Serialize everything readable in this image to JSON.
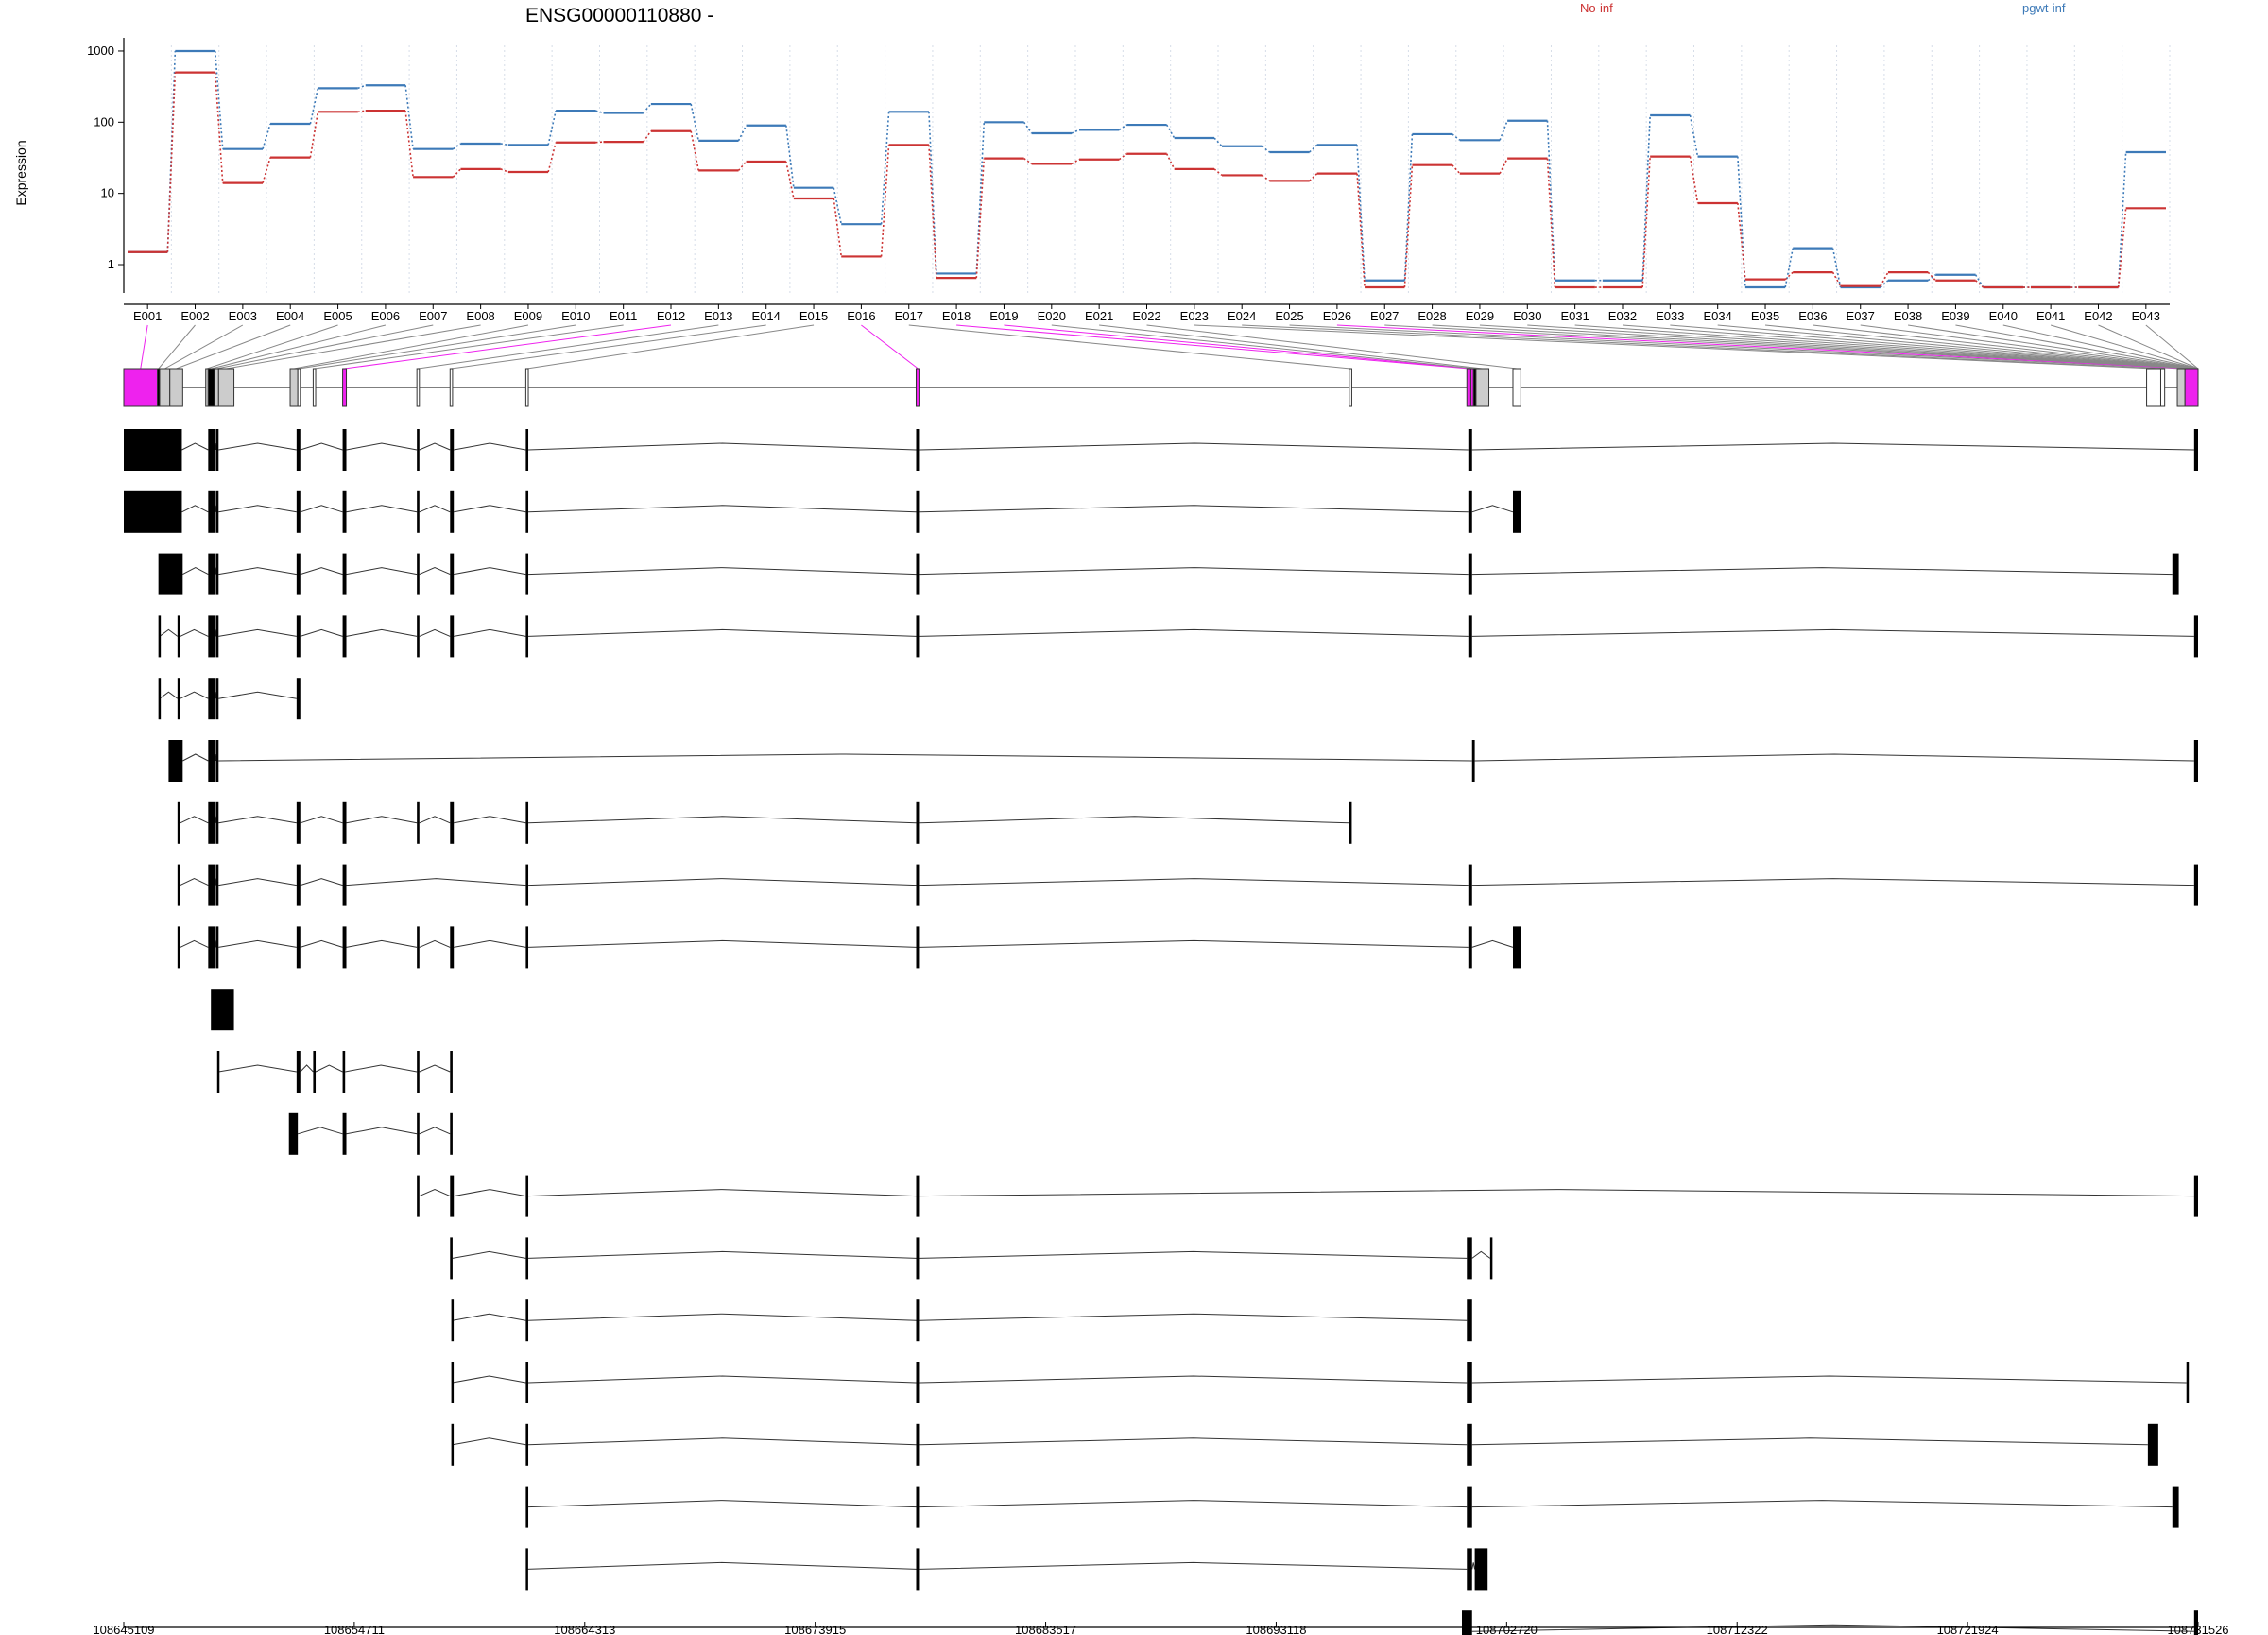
{
  "chart_data": {
    "type": "line",
    "title": "ENSG00000110880 -",
    "ylabel": "Expression",
    "yscale": "log",
    "ylim": [
      0.4,
      1200
    ],
    "yticks": [
      1,
      10,
      100,
      1000
    ],
    "ytick_labels": [
      "1",
      "10",
      "100",
      "1000"
    ],
    "categories": [
      "E001",
      "E002",
      "E003",
      "E004",
      "E005",
      "E006",
      "E007",
      "E008",
      "E009",
      "E010",
      "E011",
      "E012",
      "E013",
      "E014",
      "E015",
      "E016",
      "E017",
      "E018",
      "E019",
      "E020",
      "E021",
      "E022",
      "E023",
      "E024",
      "E025",
      "E026",
      "E027",
      "E028",
      "E029",
      "E030",
      "E031",
      "E032",
      "E033",
      "E034",
      "E035",
      "E036",
      "E037",
      "E038",
      "E039",
      "E040",
      "E041",
      "E042",
      "E043"
    ],
    "legend": [
      "No-inf",
      "pgwt-inf"
    ],
    "legend_placement": "top",
    "grid": "vertical dotted",
    "series": [
      {
        "name": "No-inf",
        "color": "#cc3333",
        "values": [
          1.5,
          500,
          14,
          32,
          140,
          145,
          17,
          22,
          20,
          52,
          53,
          75,
          21,
          28,
          8.5,
          1.3,
          48,
          0.65,
          31,
          26,
          30,
          36,
          22,
          18,
          15,
          19,
          0.48,
          25,
          19,
          31,
          0.48,
          0.48,
          33,
          7.3,
          0.62,
          0.78,
          0.5,
          0.78,
          0.6,
          0.48,
          0.48,
          0.48,
          6.2
        ]
      },
      {
        "name": "pgwt-inf",
        "color": "#3d7ab8",
        "values": [
          1.5,
          1000,
          42,
          95,
          300,
          330,
          42,
          50,
          48,
          145,
          135,
          180,
          55,
          90,
          12,
          3.7,
          140,
          0.75,
          100,
          70,
          78,
          92,
          60,
          46,
          38,
          48,
          0.6,
          68,
          56,
          105,
          0.6,
          0.6,
          125,
          33,
          0.48,
          1.7,
          0.48,
          0.6,
          0.72,
          0.48,
          0.48,
          0.48,
          38
        ]
      }
    ],
    "gene_track": {
      "x_tick_labels": [
        "108645109",
        "108654711",
        "108664313",
        "108673915",
        "108683517",
        "108693118",
        "108702720",
        "108712322",
        "108721924",
        "108731526"
      ],
      "highlight_color": "#ee22ee",
      "exons": [
        {
          "s": 0,
          "e": 0.0162,
          "color": "#ee22ee"
        },
        {
          "s": 0.0162,
          "e": 0.0173,
          "color": "#000000"
        },
        {
          "s": 0.0173,
          "e": 0.0222,
          "color": "#cccccc"
        },
        {
          "s": 0.0222,
          "e": 0.0284,
          "color": "#cccccc"
        },
        {
          "s": 0.0395,
          "e": 0.0407,
          "color": "#cccccc"
        },
        {
          "s": 0.0407,
          "e": 0.0438,
          "color": "#000000"
        },
        {
          "s": 0.0438,
          "e": 0.0457,
          "color": "#cccccc"
        },
        {
          "s": 0.0457,
          "e": 0.0531,
          "color": "#cccccc"
        },
        {
          "s": 0.0802,
          "e": 0.0839,
          "color": "#cccccc"
        },
        {
          "s": 0.0839,
          "e": 0.0851,
          "color": "#ffffff"
        },
        {
          "s": 0.0913,
          "e": 0.0925,
          "color": "#ffffff"
        },
        {
          "s": 0.1055,
          "e": 0.1073,
          "color": "#ee22ee"
        },
        {
          "s": 0.1413,
          "e": 0.1425,
          "color": "#ffffff"
        },
        {
          "s": 0.1573,
          "e": 0.1585,
          "color": "#ffffff"
        },
        {
          "s": 0.1938,
          "e": 0.195,
          "color": "#ffffff"
        },
        {
          "s": 0.382,
          "e": 0.3838,
          "color": "#ee22ee"
        },
        {
          "s": 0.5908,
          "e": 0.592,
          "color": "#ffffff"
        },
        {
          "s": 0.6475,
          "e": 0.6494,
          "color": "#ee22ee"
        },
        {
          "s": 0.6494,
          "e": 0.6507,
          "color": "#ee22ee"
        },
        {
          "s": 0.6507,
          "e": 0.6519,
          "color": "#000000"
        },
        {
          "s": 0.6519,
          "e": 0.6581,
          "color": "#cccccc"
        },
        {
          "s": 0.6697,
          "e": 0.6735,
          "color": "#ffffff"
        },
        {
          "s": 0.9752,
          "e": 0.982,
          "color": "#ffffff"
        },
        {
          "s": 0.982,
          "e": 0.9839,
          "color": "#ffffff"
        },
        {
          "s": 0.99,
          "e": 0.9937,
          "color": "#cccccc"
        },
        {
          "s": 0.9937,
          "e": 1.0,
          "color": "#ee22ee"
        }
      ],
      "transcripts": [
        [
          [
            0,
            0.028
          ],
          [
            0.0407,
            0.0438
          ],
          [
            0.0444,
            0.0457
          ],
          [
            0.0833,
            0.0851
          ],
          [
            0.1055,
            0.1073
          ],
          [
            0.1413,
            0.1425
          ],
          [
            0.1573,
            0.1591
          ],
          [
            0.1938,
            0.195
          ],
          [
            0.382,
            0.3838
          ],
          [
            0.6482,
            0.65
          ],
          [
            0.9981,
            1.0
          ]
        ],
        [
          [
            0,
            0.028
          ],
          [
            0.0407,
            0.0438
          ],
          [
            0.0444,
            0.0457
          ],
          [
            0.0833,
            0.0851
          ],
          [
            0.1055,
            0.1073
          ],
          [
            0.1413,
            0.1425
          ],
          [
            0.1573,
            0.1591
          ],
          [
            0.1938,
            0.195
          ],
          [
            0.382,
            0.3838
          ],
          [
            0.6482,
            0.65
          ],
          [
            0.6697,
            0.6735
          ]
        ],
        [
          [
            0.0167,
            0.0284
          ],
          [
            0.0407,
            0.0438
          ],
          [
            0.0444,
            0.0457
          ],
          [
            0.0833,
            0.0851
          ],
          [
            0.1055,
            0.1073
          ],
          [
            0.1413,
            0.1425
          ],
          [
            0.1573,
            0.1591
          ],
          [
            0.1938,
            0.195
          ],
          [
            0.382,
            0.3838
          ],
          [
            0.6482,
            0.65
          ],
          [
            0.9876,
            0.9907
          ]
        ],
        [
          [
            0.0167,
            0.0173
          ],
          [
            0.0259,
            0.0272
          ],
          [
            0.0407,
            0.0438
          ],
          [
            0.0444,
            0.0457
          ],
          [
            0.0833,
            0.0851
          ],
          [
            0.1055,
            0.1073
          ],
          [
            0.1413,
            0.1425
          ],
          [
            0.1573,
            0.1591
          ],
          [
            0.1938,
            0.195
          ],
          [
            0.382,
            0.3838
          ],
          [
            0.6482,
            0.65
          ],
          [
            0.9981,
            1.0
          ]
        ],
        [
          [
            0.0167,
            0.0173
          ],
          [
            0.0259,
            0.0272
          ],
          [
            0.0407,
            0.0438
          ],
          [
            0.0444,
            0.0457
          ],
          [
            0.0833,
            0.0851
          ]
        ],
        [
          [
            0.0216,
            0.0284
          ],
          [
            0.0407,
            0.0438
          ],
          [
            0.0444,
            0.0457
          ],
          [
            0.65,
            0.6513
          ],
          [
            0.9981,
            1.0
          ]
        ],
        [
          [
            0.0259,
            0.0272
          ],
          [
            0.0407,
            0.0438
          ],
          [
            0.0444,
            0.0457
          ],
          [
            0.0833,
            0.0851
          ],
          [
            0.1055,
            0.1073
          ],
          [
            0.1413,
            0.1425
          ],
          [
            0.1573,
            0.1591
          ],
          [
            0.1938,
            0.195
          ],
          [
            0.382,
            0.3838
          ],
          [
            0.5908,
            0.592
          ]
        ],
        [
          [
            0.0259,
            0.0272
          ],
          [
            0.0407,
            0.0438
          ],
          [
            0.0444,
            0.0457
          ],
          [
            0.0833,
            0.0851
          ],
          [
            0.1055,
            0.1073
          ],
          [
            0.1938,
            0.195
          ],
          [
            0.382,
            0.3838
          ],
          [
            0.6482,
            0.65
          ],
          [
            0.9981,
            1.0
          ]
        ],
        [
          [
            0.0259,
            0.0272
          ],
          [
            0.0407,
            0.0438
          ],
          [
            0.0444,
            0.0457
          ],
          [
            0.0833,
            0.0851
          ],
          [
            0.1055,
            0.1073
          ],
          [
            0.1413,
            0.1425
          ],
          [
            0.1573,
            0.1591
          ],
          [
            0.1938,
            0.195
          ],
          [
            0.382,
            0.3838
          ],
          [
            0.6482,
            0.65
          ],
          [
            0.6697,
            0.6735
          ]
        ],
        [
          [
            0.042,
            0.0531
          ]
        ],
        [
          [
            0.045,
            0.0457
          ],
          [
            0.0833,
            0.0851
          ],
          [
            0.0913,
            0.0925
          ],
          [
            0.1055,
            0.1067
          ],
          [
            0.1413,
            0.1425
          ],
          [
            0.1573,
            0.1585
          ]
        ],
        [
          [
            0.0796,
            0.0839
          ],
          [
            0.1055,
            0.1073
          ],
          [
            0.1413,
            0.1425
          ],
          [
            0.1573,
            0.1585
          ]
        ],
        [
          [
            0.1413,
            0.1425
          ],
          [
            0.1573,
            0.1591
          ],
          [
            0.1938,
            0.195
          ],
          [
            0.382,
            0.3838
          ],
          [
            0.9981,
            1.0
          ]
        ],
        [
          [
            0.1573,
            0.1585
          ],
          [
            0.1938,
            0.195
          ],
          [
            0.382,
            0.3838
          ],
          [
            0.6475,
            0.65
          ],
          [
            0.6587,
            0.6593
          ]
        ],
        [
          [
            0.1579,
            0.1585
          ],
          [
            0.1938,
            0.195
          ],
          [
            0.382,
            0.3838
          ],
          [
            0.6475,
            0.65
          ]
        ],
        [
          [
            0.1579,
            0.1585
          ],
          [
            0.1938,
            0.195
          ],
          [
            0.382,
            0.3838
          ],
          [
            0.6475,
            0.65
          ],
          [
            0.9944,
            0.995
          ]
        ],
        [
          [
            0.1579,
            0.1585
          ],
          [
            0.1938,
            0.195
          ],
          [
            0.382,
            0.3838
          ],
          [
            0.6475,
            0.65
          ],
          [
            0.9758,
            0.9808
          ]
        ],
        [
          [
            0.1938,
            0.195
          ],
          [
            0.382,
            0.3838
          ],
          [
            0.6475,
            0.65
          ],
          [
            0.9876,
            0.9907
          ]
        ],
        [
          [
            0.1938,
            0.1944
          ],
          [
            0.382,
            0.3838
          ],
          [
            0.6475,
            0.65
          ],
          [
            0.6513,
            0.6575
          ]
        ],
        [
          [
            0.6451,
            0.65
          ],
          [
            0.9981,
            1.0
          ]
        ]
      ]
    }
  }
}
